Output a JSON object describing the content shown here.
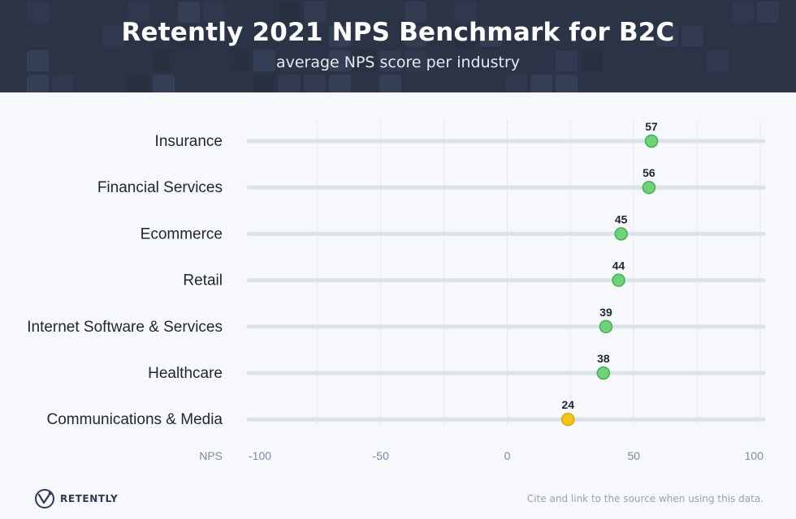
{
  "header": {
    "title": "Retently 2021 NPS Benchmark for B2C",
    "subtitle": "average NPS score per industry"
  },
  "footer": {
    "logo_text": "RETENTLY",
    "source_note": "Cite and link to the source when using this data."
  },
  "colors": {
    "header_bg": "#2b3346",
    "track": "#dde2e9",
    "green_marker": "#6fd17a",
    "green_marker_stroke": "#3fb24f",
    "yellow_marker": "#f5c518",
    "yellow_marker_stroke": "#d9a800"
  },
  "chart_data": {
    "type": "scatter",
    "title": "Retently 2021 NPS Benchmark for B2C",
    "subtitle": "average NPS score per industry",
    "xlabel": "NPS",
    "xlim": [
      -100,
      100
    ],
    "xticks": [
      -100,
      -50,
      0,
      50,
      100
    ],
    "grid": true,
    "categories": [
      "Insurance",
      "Financial Services",
      "Ecommerce",
      "Retail",
      "Internet Software & Services",
      "Healthcare",
      "Communications & Media"
    ],
    "values": [
      57,
      56,
      45,
      44,
      39,
      38,
      24
    ],
    "marker_colors": [
      "green",
      "green",
      "green",
      "green",
      "green",
      "green",
      "yellow"
    ]
  }
}
